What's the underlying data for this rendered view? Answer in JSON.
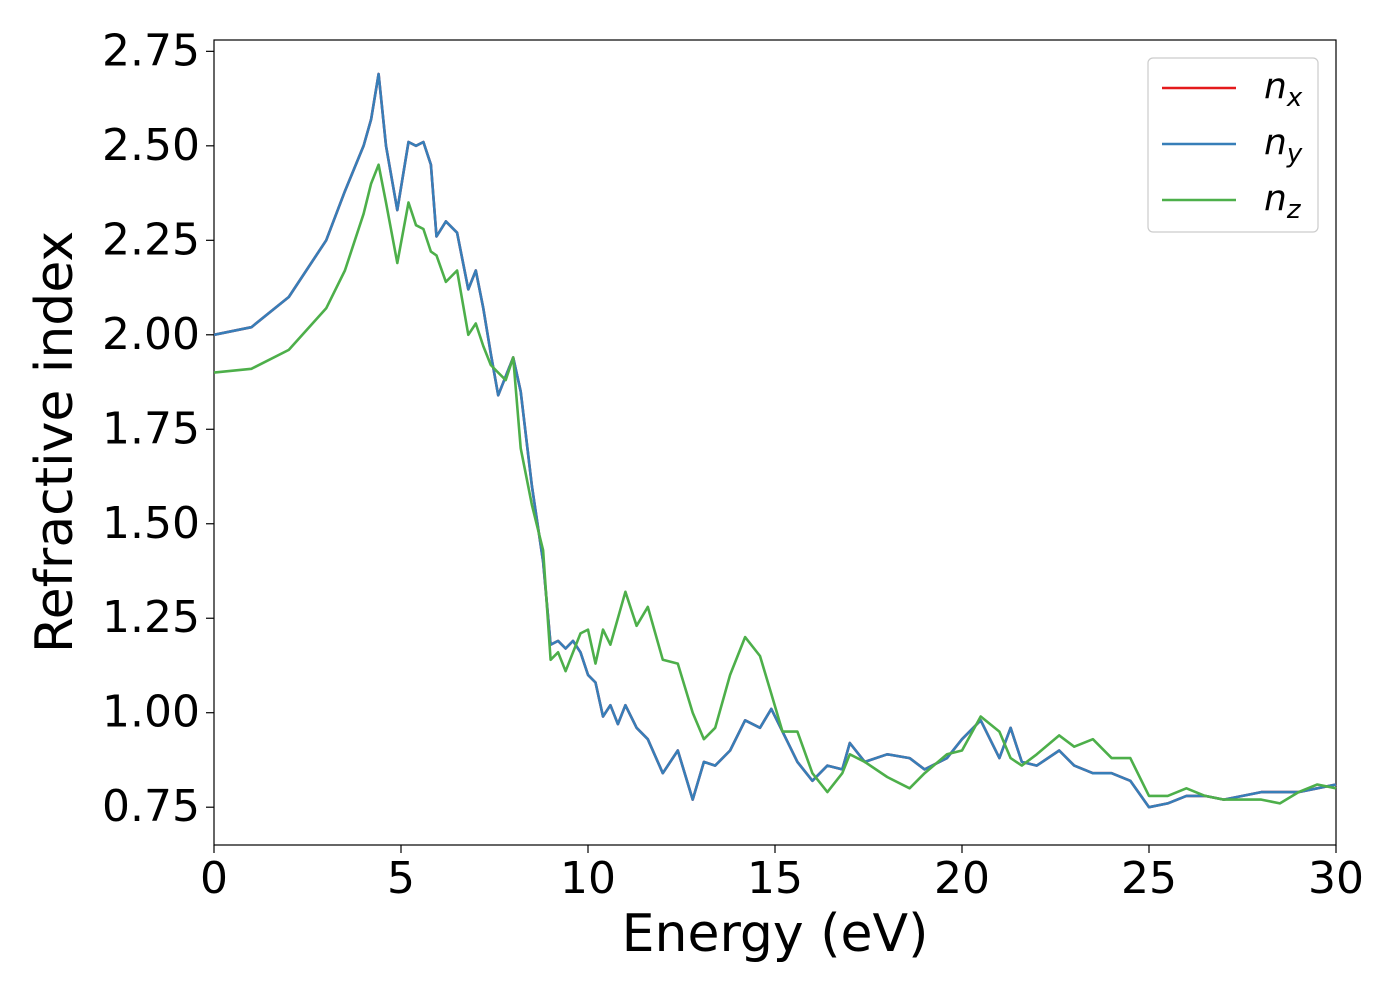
{
  "chart_data": {
    "type": "line",
    "xlabel": "Energy (eV)",
    "ylabel": "Refractive index",
    "x": [
      0,
      1,
      2,
      3,
      3.5,
      4,
      4.2,
      4.4,
      4.6,
      4.9,
      5.2,
      5.4,
      5.6,
      5.8,
      5.95,
      6.2,
      6.5,
      6.8,
      7,
      7.2,
      7.4,
      7.6,
      7.8,
      8,
      8.2,
      8.5,
      8.8,
      9,
      9.2,
      9.4,
      9.6,
      9.8,
      10,
      10.2,
      10.4,
      10.6,
      10.8,
      11,
      11.3,
      11.6,
      12,
      12.4,
      12.8,
      13.1,
      13.4,
      13.8,
      14.2,
      14.6,
      14.9,
      15.2,
      15.6,
      16,
      16.4,
      16.8,
      17,
      17.4,
      18,
      18.6,
      19,
      19.6,
      20,
      20.5,
      21,
      21.3,
      21.6,
      22,
      22.6,
      23,
      23.5,
      24,
      24.5,
      25,
      25.5,
      26,
      26.5,
      27,
      28,
      28.5,
      29,
      29.5,
      30
    ],
    "series": [
      {
        "name": "nx",
        "color": "#e41a1c",
        "values": [
          2.0,
          2.02,
          2.1,
          2.25,
          2.38,
          2.5,
          2.57,
          2.69,
          2.5,
          2.33,
          2.51,
          2.5,
          2.51,
          2.45,
          2.26,
          2.3,
          2.27,
          2.12,
          2.17,
          2.07,
          1.95,
          1.84,
          1.89,
          1.94,
          1.85,
          1.6,
          1.4,
          1.18,
          1.19,
          1.17,
          1.19,
          1.16,
          1.1,
          1.08,
          0.99,
          1.02,
          0.97,
          1.02,
          0.96,
          0.93,
          0.84,
          0.9,
          0.77,
          0.87,
          0.86,
          0.9,
          0.98,
          0.96,
          1.01,
          0.95,
          0.87,
          0.82,
          0.86,
          0.85,
          0.92,
          0.87,
          0.89,
          0.88,
          0.85,
          0.88,
          0.93,
          0.98,
          0.88,
          0.96,
          0.87,
          0.86,
          0.9,
          0.86,
          0.84,
          0.84,
          0.82,
          0.75,
          0.76,
          0.78,
          0.78,
          0.77,
          0.79,
          0.79,
          0.79,
          0.8,
          0.81
        ]
      },
      {
        "name": "ny",
        "color": "#377eb8",
        "values": [
          2.0,
          2.02,
          2.1,
          2.25,
          2.38,
          2.5,
          2.57,
          2.69,
          2.5,
          2.33,
          2.51,
          2.5,
          2.51,
          2.45,
          2.26,
          2.3,
          2.27,
          2.12,
          2.17,
          2.07,
          1.95,
          1.84,
          1.89,
          1.94,
          1.85,
          1.6,
          1.4,
          1.18,
          1.19,
          1.17,
          1.19,
          1.16,
          1.1,
          1.08,
          0.99,
          1.02,
          0.97,
          1.02,
          0.96,
          0.93,
          0.84,
          0.9,
          0.77,
          0.87,
          0.86,
          0.9,
          0.98,
          0.96,
          1.01,
          0.95,
          0.87,
          0.82,
          0.86,
          0.85,
          0.92,
          0.87,
          0.89,
          0.88,
          0.85,
          0.88,
          0.93,
          0.98,
          0.88,
          0.96,
          0.87,
          0.86,
          0.9,
          0.86,
          0.84,
          0.84,
          0.82,
          0.75,
          0.76,
          0.78,
          0.78,
          0.77,
          0.79,
          0.79,
          0.79,
          0.8,
          0.81
        ]
      },
      {
        "name": "nz",
        "color": "#4daf4a",
        "values": [
          1.9,
          1.91,
          1.96,
          2.07,
          2.17,
          2.32,
          2.4,
          2.45,
          2.35,
          2.19,
          2.35,
          2.29,
          2.28,
          2.22,
          2.21,
          2.14,
          2.17,
          2.0,
          2.03,
          1.97,
          1.92,
          1.9,
          1.88,
          1.94,
          1.7,
          1.55,
          1.43,
          1.14,
          1.16,
          1.11,
          1.16,
          1.21,
          1.22,
          1.13,
          1.22,
          1.18,
          1.25,
          1.32,
          1.23,
          1.28,
          1.14,
          1.13,
          1.0,
          0.93,
          0.96,
          1.1,
          1.2,
          1.15,
          1.05,
          0.95,
          0.95,
          0.84,
          0.79,
          0.84,
          0.89,
          0.87,
          0.83,
          0.8,
          0.84,
          0.89,
          0.9,
          0.99,
          0.95,
          0.88,
          0.86,
          0.89,
          0.94,
          0.91,
          0.93,
          0.88,
          0.88,
          0.78,
          0.78,
          0.8,
          0.78,
          0.77,
          0.77,
          0.76,
          0.79,
          0.81,
          0.8
        ]
      }
    ],
    "xlim": [
      0,
      30
    ],
    "xticks": [
      0,
      5,
      10,
      15,
      20,
      25,
      30
    ],
    "ylim": [
      0.65,
      2.78
    ],
    "yticks": [
      0.75,
      {
        "value": 1.0,
        "label": "1.00"
      },
      1.25,
      {
        "value": 1.5,
        "label": "1.50"
      },
      1.75,
      {
        "value": 2.0,
        "label": "2.00"
      },
      2.25,
      {
        "value": 2.5,
        "label": "2.50"
      },
      2.75
    ],
    "legend": "upper right"
  }
}
